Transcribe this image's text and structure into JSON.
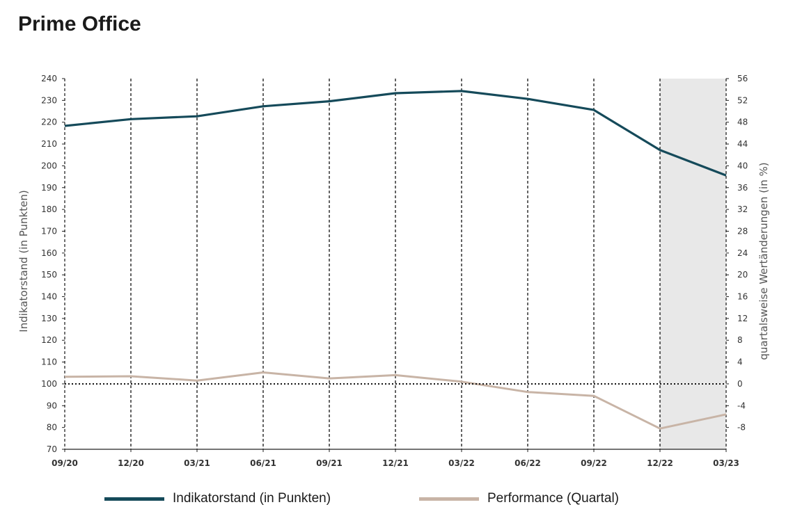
{
  "page": {
    "title": "Prime Office"
  },
  "colors": {
    "indicator": "#154a5a",
    "performance": "#c8b4a6",
    "forecast_shade": "#e8e8e8",
    "axis": "#222222"
  },
  "chart_data": {
    "type": "line",
    "title": "Prime Office",
    "categories": [
      "09/20",
      "12/20",
      "03/21",
      "06/21",
      "09/21",
      "12/21",
      "03/22",
      "06/22",
      "09/22",
      "12/22",
      "03/23"
    ],
    "y_left": {
      "label": "Indikatorstand (in Punkten)",
      "min": 70,
      "max": 240,
      "step": 10
    },
    "y_right": {
      "label": "quartalsweise Wertänderungen (in %)",
      "min": -12,
      "max": 56,
      "step": 4,
      "tick_min": -8
    },
    "reference_line": {
      "axis": "right",
      "value": 0,
      "style": "dotted"
    },
    "shaded_region": {
      "from": "12/22",
      "to": "03/23"
    },
    "grid": "vertical dashed",
    "legend_position": "bottom",
    "series": [
      {
        "name": "Indikatorstand (in Punkten)",
        "axis": "left",
        "values": [
          218.3,
          221.4,
          222.7,
          227.3,
          229.6,
          233.3,
          234.3,
          230.7,
          225.6,
          207.2,
          195.6
        ]
      },
      {
        "name": "Performance (Quartal)",
        "axis": "right",
        "values": [
          1.3,
          1.4,
          0.6,
          2.1,
          1.0,
          1.6,
          0.4,
          -1.5,
          -2.2,
          -8.2,
          -5.6
        ]
      }
    ]
  }
}
